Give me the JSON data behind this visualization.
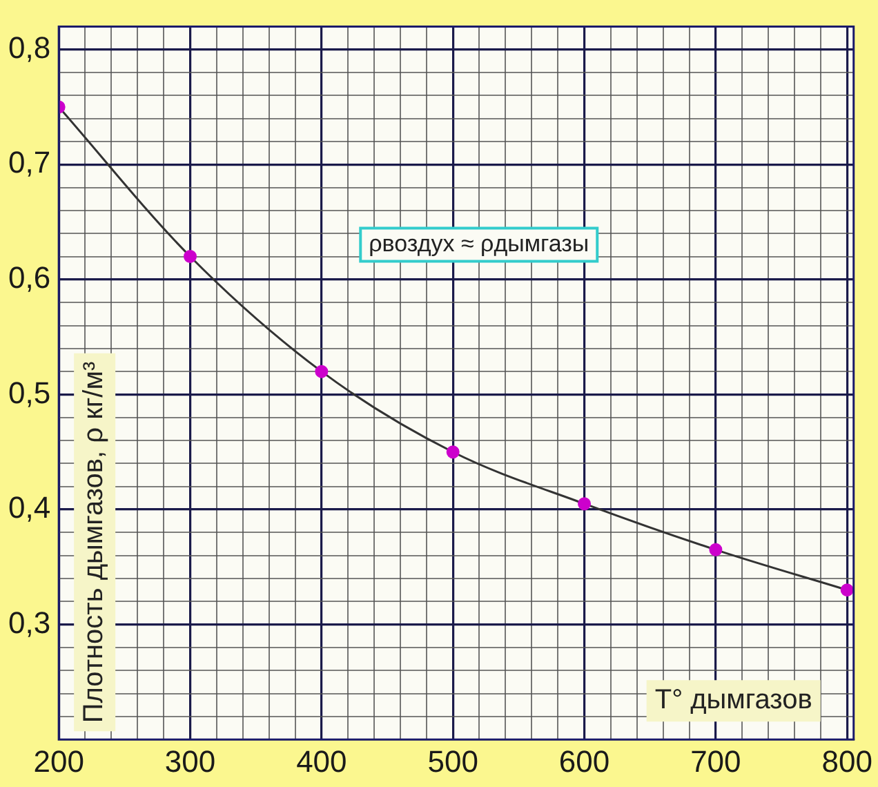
{
  "chart_data": {
    "type": "line",
    "xlabel": "T° дымгазов",
    "ylabel": "Плотность дымгазов, ρ кг/м³",
    "annotations": [
      "ρвоздух ≈ ρдымгазы"
    ],
    "x": [
      200,
      300,
      400,
      500,
      600,
      700,
      800
    ],
    "series": [
      {
        "color": "#cc00cc",
        "values": [
          0.75,
          0.62,
          0.52,
          0.45,
          0.405,
          0.365,
          0.33
        ]
      }
    ],
    "xlim": [
      200,
      805
    ],
    "xticks": [
      200,
      {
        "value": 220,
        "label": null
      },
      {
        "value": 240,
        "label": null
      },
      {
        "value": 260,
        "label": null
      },
      {
        "value": 280,
        "label": null
      },
      300,
      {
        "value": 320,
        "label": null
      },
      {
        "value": 340,
        "label": null
      },
      {
        "value": 360,
        "label": null
      },
      {
        "value": 380,
        "label": null
      },
      400,
      {
        "value": 420,
        "label": null
      },
      {
        "value": 440,
        "label": null
      },
      {
        "value": 460,
        "label": null
      },
      {
        "value": 480,
        "label": null
      },
      500,
      {
        "value": 520,
        "label": null
      },
      {
        "value": 540,
        "label": null
      },
      {
        "value": 560,
        "label": null
      },
      {
        "value": 580,
        "label": null
      },
      600,
      {
        "value": 620,
        "label": null
      },
      {
        "value": 640,
        "label": null
      },
      {
        "value": 660,
        "label": null
      },
      {
        "value": 680,
        "label": null
      },
      700,
      {
        "value": 720,
        "label": null
      },
      {
        "value": 740,
        "label": null
      },
      {
        "value": 760,
        "label": null
      },
      {
        "value": 780,
        "label": null
      },
      800
    ],
    "ylim": [
      0.2,
      0.82
    ],
    "yticks": [
      {
        "value": 0.22,
        "label": null
      },
      {
        "value": 0.24,
        "label": null
      },
      {
        "value": 0.26,
        "label": null
      },
      {
        "value": 0.28,
        "label": null
      },
      {
        "value": 0.3,
        "label": "0,3"
      },
      {
        "value": 0.32,
        "label": null
      },
      {
        "value": 0.34,
        "label": null
      },
      {
        "value": 0.36,
        "label": null
      },
      {
        "value": 0.38,
        "label": null
      },
      {
        "value": 0.4,
        "label": "0,4"
      },
      {
        "value": 0.42,
        "label": null
      },
      {
        "value": 0.44,
        "label": null
      },
      {
        "value": 0.46,
        "label": null
      },
      {
        "value": 0.48,
        "label": null
      },
      {
        "value": 0.5,
        "label": "0,5"
      },
      {
        "value": 0.52,
        "label": null
      },
      {
        "value": 0.54,
        "label": null
      },
      {
        "value": 0.56,
        "label": null
      },
      {
        "value": 0.58,
        "label": null
      },
      {
        "value": 0.6,
        "label": "0,6"
      },
      {
        "value": 0.62,
        "label": null
      },
      {
        "value": 0.64,
        "label": null
      },
      {
        "value": 0.66,
        "label": null
      },
      {
        "value": 0.68,
        "label": null
      },
      {
        "value": 0.7,
        "label": "0,7"
      },
      {
        "value": 0.72,
        "label": null
      },
      {
        "value": 0.74,
        "label": null
      },
      {
        "value": 0.76,
        "label": null
      },
      {
        "value": 0.78,
        "label": null
      },
      {
        "value": 0.8,
        "label": "0,8"
      }
    ],
    "grid": true,
    "marker": "circle",
    "line_style": "solid",
    "legend": false
  }
}
